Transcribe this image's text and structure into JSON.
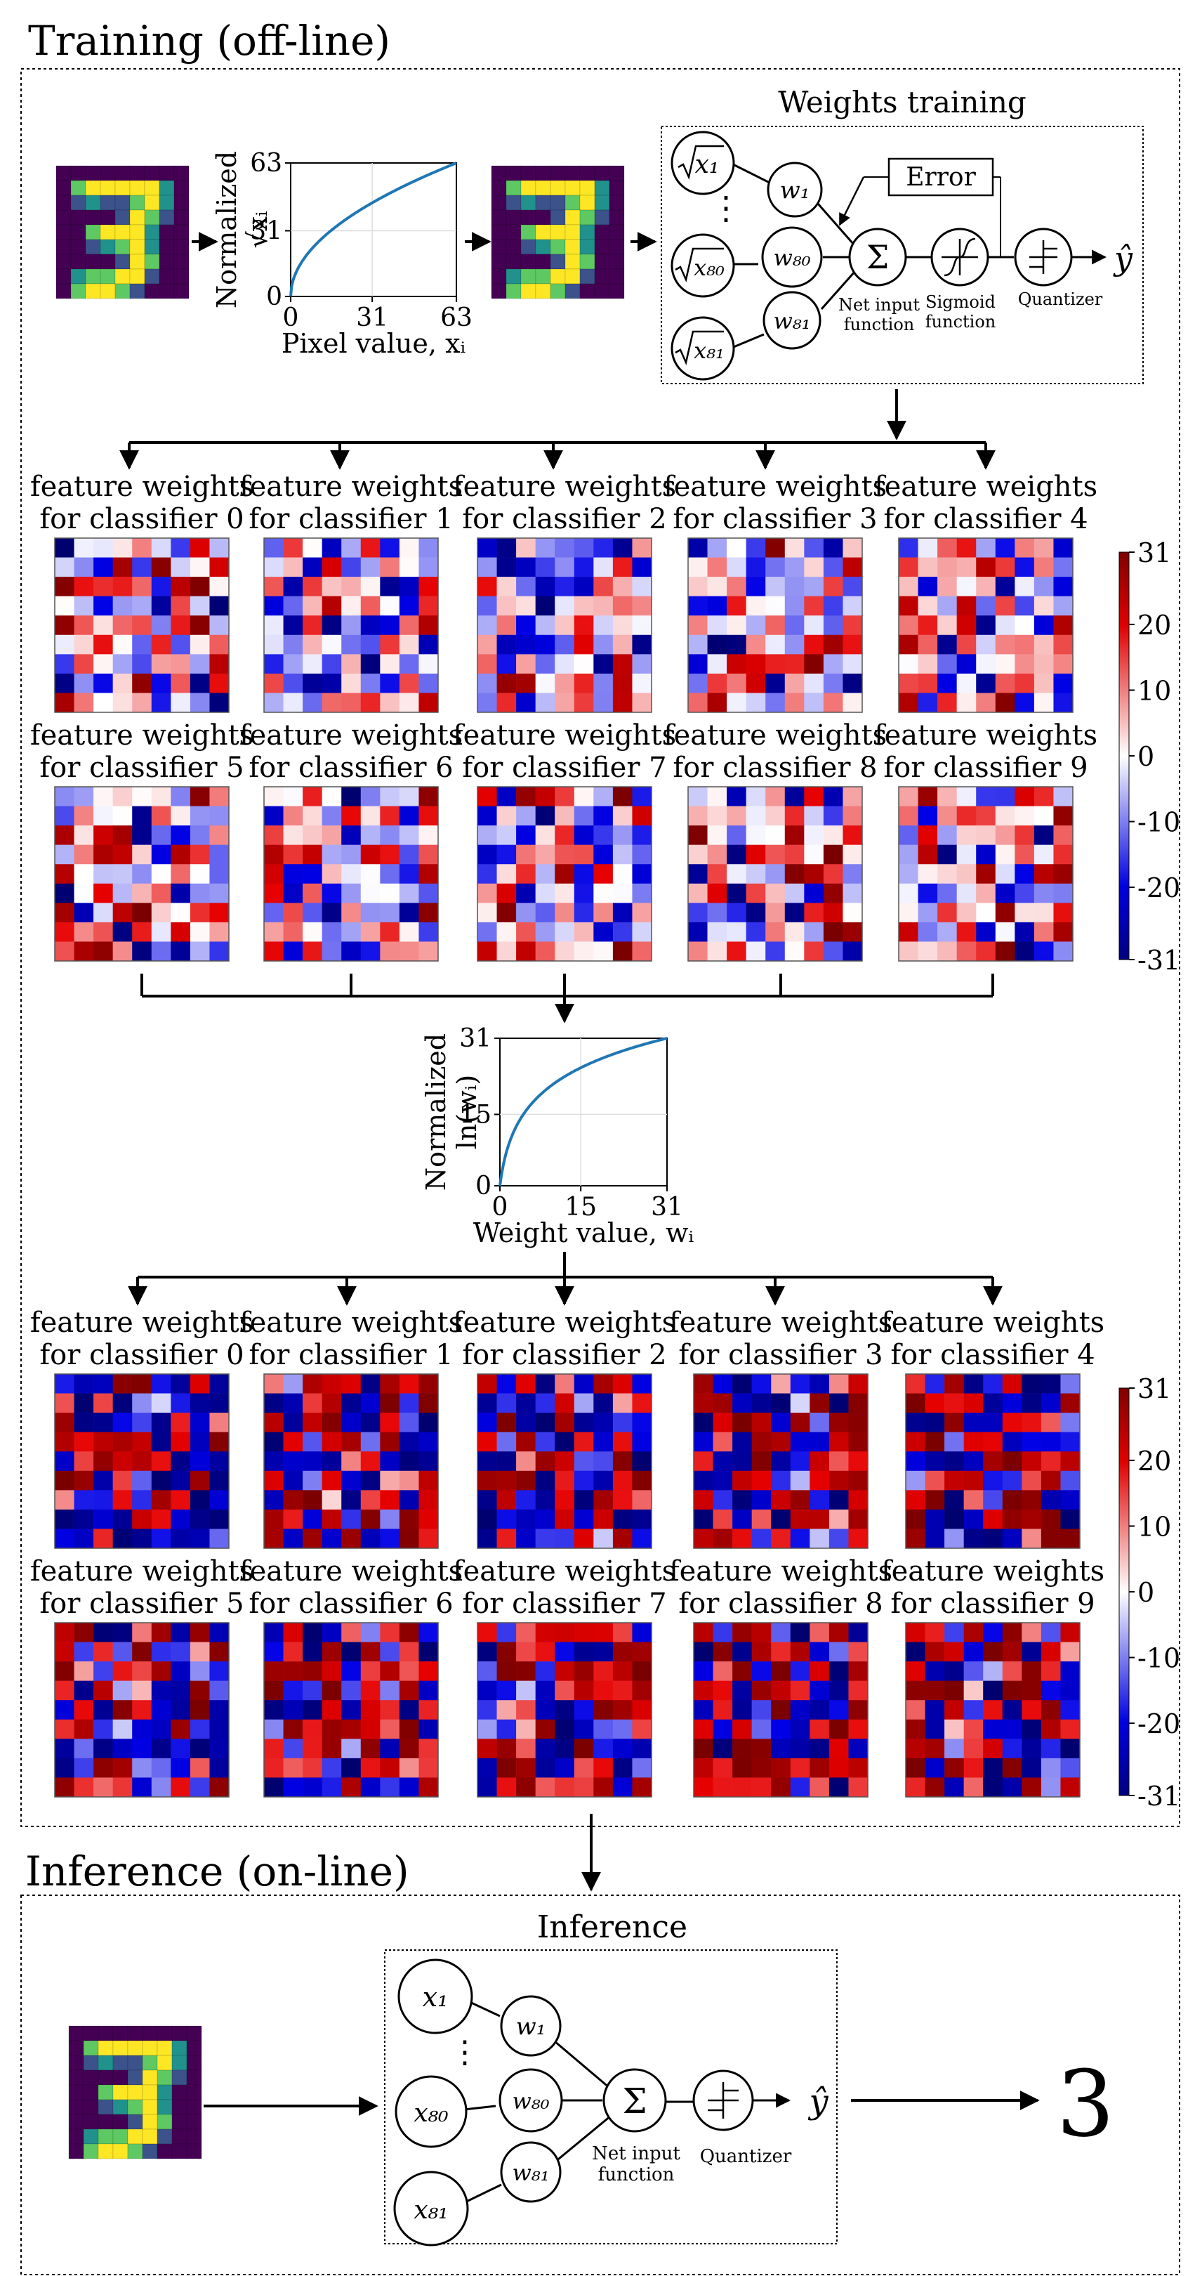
{
  "training": {
    "title": "Training  (off-line)"
  },
  "inference_section": {
    "title": "Inference  (on-line)"
  },
  "weights_training": {
    "title": "Weights training",
    "nodes_sqrt": [
      "x₁",
      "x₈₀",
      "x₈₁"
    ],
    "nodes_w": [
      "w₁",
      "w₈₀",
      "w₈₁"
    ],
    "error_label": "Error",
    "net_input_label": [
      "Net input",
      "function"
    ],
    "sigmoid_label": [
      "Sigmoid",
      "function"
    ],
    "quantizer_label": "Quantizer",
    "output_label": "ŷ",
    "sum_symbol": "Σ",
    "ellipsis": "⋮"
  },
  "sqrt_chart": {
    "chart_data": {
      "type": "line",
      "title": "",
      "xlabel": "Pixel value, xᵢ",
      "ylabel": "Normalized √xᵢ",
      "ylabel_parts": [
        "Normalized",
        "√xᵢ"
      ],
      "xticks": [
        "0",
        "31",
        "63"
      ],
      "yticks": [
        "0",
        "31",
        "63"
      ],
      "xlim": [
        0,
        63
      ],
      "ylim": [
        0,
        63
      ],
      "series": [
        {
          "name": "sqrt",
          "function": "63*sqrt(x/63)"
        }
      ]
    }
  },
  "log_chart": {
    "chart_data": {
      "type": "line",
      "title": "",
      "xlabel": "Weight value, wᵢ",
      "ylabel": "Normalized ln(wᵢ)",
      "ylabel_parts": [
        "Normalized",
        "ln(wᵢ)"
      ],
      "xticks": [
        "0",
        "15",
        "31"
      ],
      "yticks": [
        "0",
        "15",
        "31"
      ],
      "xlim": [
        0,
        31
      ],
      "ylim": [
        0,
        31
      ],
      "series": [
        {
          "name": "log",
          "function": "31*ln(1+x)/ln(32)"
        }
      ]
    }
  },
  "classifier_labels": [
    [
      "feature weights",
      "for classifier 0"
    ],
    [
      "feature weights",
      "for classifier 1"
    ],
    [
      "feature weights",
      "for classifier 2"
    ],
    [
      "feature weights",
      "for classifier 3"
    ],
    [
      "feature weights",
      "for classifier 4"
    ],
    [
      "feature weights",
      "for classifier 5"
    ],
    [
      "feature weights",
      "for classifier 6"
    ],
    [
      "feature weights",
      "for classifier 7"
    ],
    [
      "feature weights",
      "for classifier 8"
    ],
    [
      "feature weights",
      "for classifier 9"
    ]
  ],
  "colorbar_ticks": [
    "31",
    "20",
    "10",
    "0",
    "-10",
    "-20",
    "-31"
  ],
  "colors": {
    "viridis_dark": "#440154",
    "viridis_mid": "#21918c",
    "viridis_light": "#fde725",
    "heat_neg": "#00007f",
    "heat_pos": "#7f0000",
    "curve": "#1f77b4"
  },
  "digit_grid": [
    [
      0,
      0,
      0,
      0,
      0,
      0,
      0,
      0,
      0
    ],
    [
      0,
      3,
      4,
      4,
      4,
      4,
      4,
      2,
      0
    ],
    [
      0,
      1,
      2,
      1,
      1,
      3,
      4,
      2,
      0
    ],
    [
      0,
      0,
      0,
      0,
      1,
      4,
      3,
      1,
      0
    ],
    [
      0,
      0,
      3,
      4,
      4,
      4,
      2,
      0,
      0
    ],
    [
      0,
      0,
      1,
      2,
      3,
      4,
      2,
      0,
      0
    ],
    [
      0,
      0,
      0,
      0,
      1,
      4,
      3,
      0,
      0
    ],
    [
      0,
      2,
      3,
      3,
      4,
      4,
      1,
      0,
      0
    ],
    [
      0,
      3,
      4,
      4,
      3,
      1,
      0,
      0,
      0
    ]
  ],
  "inference": {
    "title": "Inference",
    "nodes_x": [
      "x₁",
      "x₈₀",
      "x₈₁"
    ],
    "nodes_w": [
      "w₁",
      "w₈₀",
      "w₈₁"
    ],
    "net_input_label": [
      "Net input",
      "function"
    ],
    "quantizer_label": "Quantizer",
    "output_label": "ŷ",
    "sum_symbol": "Σ",
    "ellipsis": "⋮",
    "result": "3"
  }
}
